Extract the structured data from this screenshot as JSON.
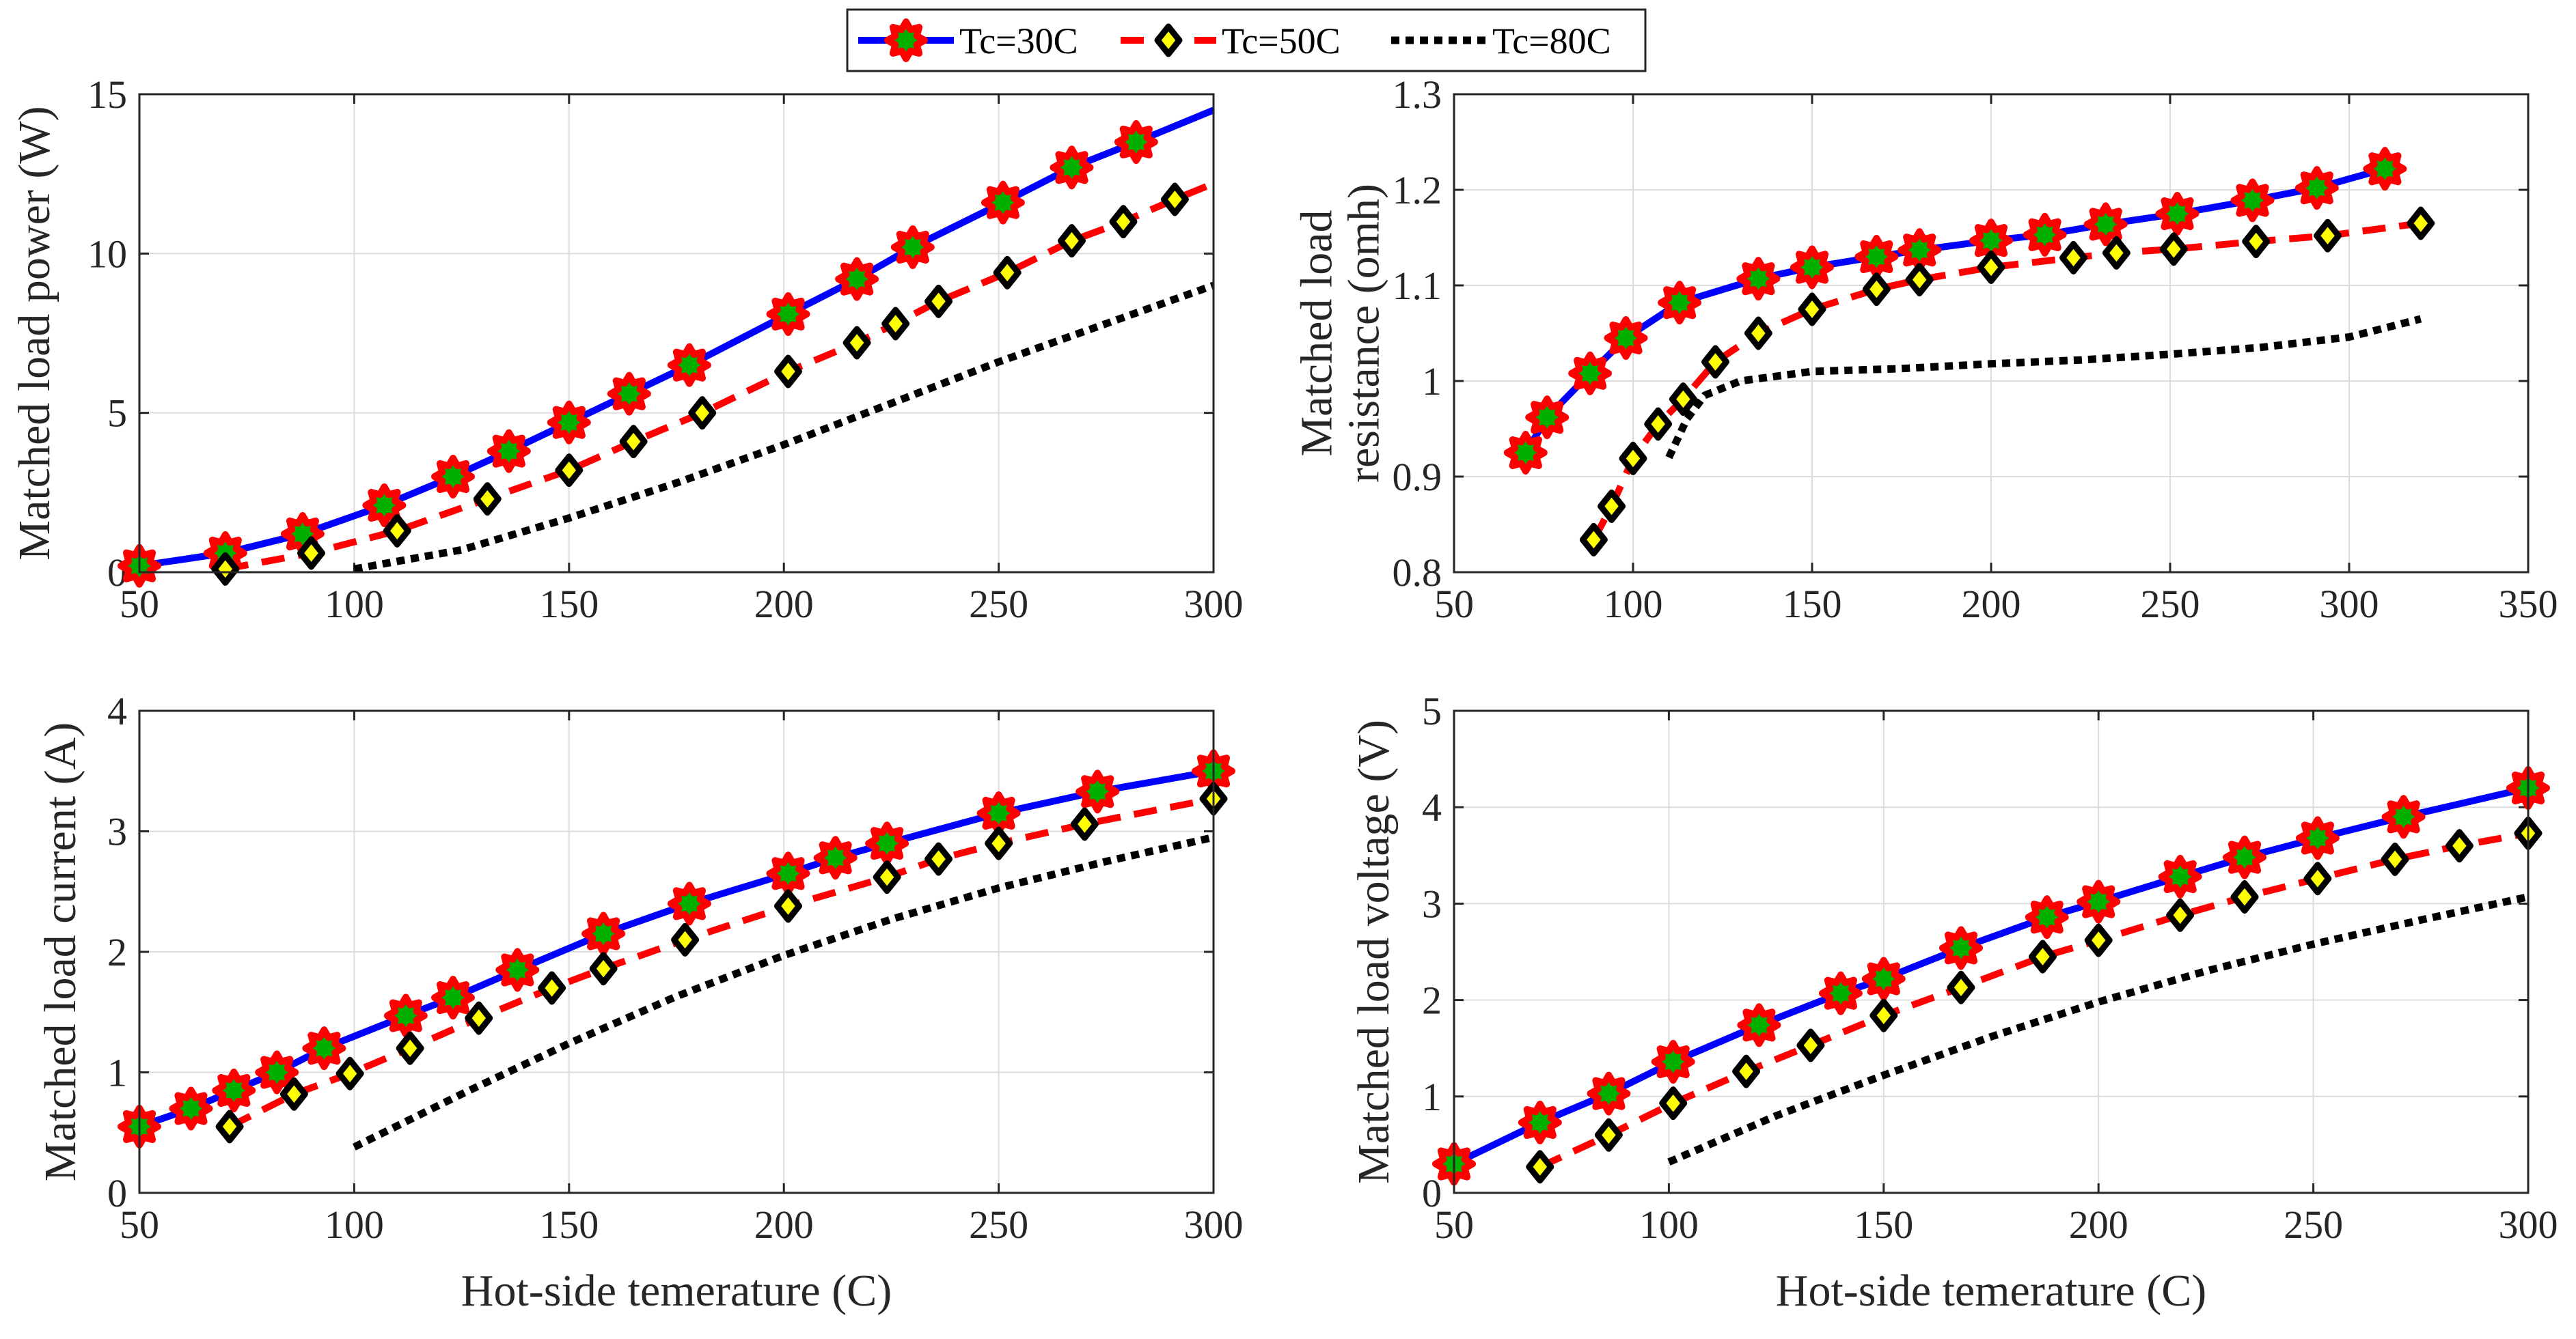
{
  "legend": {
    "entries": [
      {
        "label": "Tc=30C",
        "color": "#0000ff",
        "dash": "solid",
        "marker": "star",
        "marker_edge": "#ff0000",
        "marker_face": "#00b000"
      },
      {
        "label": "Tc=50C",
        "color": "#ff0000",
        "dash": "dashed",
        "marker": "diamond",
        "marker_edge": "#000000",
        "marker_face": "#ffff00"
      },
      {
        "label": "Tc=80C",
        "color": "#000000",
        "dash": "dotted",
        "marker": "none"
      }
    ]
  },
  "chart_data": [
    {
      "type": "line",
      "position": "top-left",
      "xlabel": "",
      "ylabel": "Matched load power (W)",
      "xlim": [
        50,
        300
      ],
      "ylim": [
        0,
        15
      ],
      "xticks": [
        50,
        100,
        150,
        200,
        250,
        300
      ],
      "yticks": [
        0,
        5,
        10,
        15
      ],
      "series": [
        {
          "name": "Tc=30C",
          "x": [
            50,
            70,
            88,
            107,
            123,
            136,
            150,
            164,
            178,
            201,
            217,
            230,
            251,
            267,
            282,
            300
          ],
          "y": [
            0.2,
            0.6,
            1.2,
            2.1,
            3.0,
            3.8,
            4.7,
            5.6,
            6.5,
            8.1,
            9.2,
            10.2,
            11.6,
            12.7,
            13.5,
            14.5
          ],
          "markers": [
            true,
            true,
            true,
            true,
            true,
            true,
            true,
            true,
            true,
            true,
            true,
            true,
            true,
            true,
            true,
            false
          ]
        },
        {
          "name": "Tc=50C",
          "x": [
            70,
            90,
            110,
            131,
            150,
            165,
            181,
            201,
            217,
            226,
            236,
            252,
            267,
            279,
            291,
            300
          ],
          "y": [
            0.1,
            0.6,
            1.3,
            2.3,
            3.2,
            4.1,
            5.0,
            6.3,
            7.2,
            7.8,
            8.5,
            9.4,
            10.4,
            11.0,
            11.7,
            12.2
          ],
          "markers": [
            true,
            true,
            true,
            true,
            true,
            true,
            true,
            true,
            true,
            true,
            true,
            true,
            true,
            true,
            true,
            false
          ]
        },
        {
          "name": "Tc=80C",
          "x": [
            100,
            125,
            150,
            175,
            200,
            225,
            250,
            275,
            300
          ],
          "y": [
            0.1,
            0.7,
            1.7,
            2.8,
            4.0,
            5.3,
            6.6,
            7.8,
            9.0
          ],
          "markers": []
        }
      ]
    },
    {
      "type": "line",
      "position": "top-right",
      "xlabel": "",
      "ylabel": "Matched load resistance (omh)",
      "ylabel_lines": [
        "Matched load",
        "resistance (omh)"
      ],
      "xlim": [
        50,
        350
      ],
      "ylim": [
        0.8,
        1.3
      ],
      "xticks": [
        50,
        100,
        150,
        200,
        250,
        300,
        350
      ],
      "yticks": [
        0.8,
        0.9,
        1,
        1.1,
        1.2,
        1.3
      ],
      "series": [
        {
          "name": "Tc=30C",
          "x": [
            70,
            76,
            88,
            98,
            113,
            135,
            150,
            168,
            180,
            200,
            215,
            232,
            252,
            273,
            291,
            310
          ],
          "y": [
            0.925,
            0.962,
            1.008,
            1.045,
            1.082,
            1.107,
            1.119,
            1.13,
            1.137,
            1.147,
            1.153,
            1.164,
            1.175,
            1.189,
            1.202,
            1.222
          ],
          "markers": [
            true,
            true,
            true,
            true,
            true,
            true,
            true,
            true,
            true,
            true,
            true,
            true,
            true,
            true,
            true,
            true
          ]
        },
        {
          "name": "Tc=50C",
          "x": [
            89,
            94,
            100,
            107,
            114,
            123,
            135,
            150,
            168,
            180,
            200,
            223,
            235,
            251,
            274,
            294,
            320
          ],
          "y": [
            0.834,
            0.869,
            0.919,
            0.955,
            0.981,
            1.02,
            1.05,
            1.075,
            1.096,
            1.106,
            1.119,
            1.129,
            1.134,
            1.138,
            1.146,
            1.152,
            1.165
          ],
          "markers": [
            true,
            true,
            true,
            true,
            true,
            true,
            true,
            true,
            true,
            true,
            true,
            true,
            true,
            true,
            true,
            true,
            true
          ]
        },
        {
          "name": "Tc=80C",
          "x": [
            110,
            115,
            120,
            130,
            150,
            175,
            200,
            225,
            250,
            275,
            300,
            320
          ],
          "y": [
            0.92,
            0.96,
            0.985,
            1.0,
            1.01,
            1.013,
            1.018,
            1.022,
            1.028,
            1.035,
            1.046,
            1.065
          ],
          "markers": []
        }
      ]
    },
    {
      "type": "line",
      "position": "bottom-left",
      "xlabel": "Hot-side temerature (C)",
      "ylabel": "Matched load current  (A)",
      "xlim": [
        50,
        300
      ],
      "ylim": [
        0,
        4
      ],
      "xticks": [
        50,
        100,
        150,
        200,
        250,
        300
      ],
      "yticks": [
        0,
        1,
        2,
        3,
        4
      ],
      "series": [
        {
          "name": "Tc=30C",
          "x": [
            50,
            62,
            72,
            82,
            93,
            112,
            123,
            138,
            158,
            178,
            201,
            212,
            224,
            250,
            273,
            300
          ],
          "y": [
            0.55,
            0.7,
            0.85,
            1.0,
            1.2,
            1.47,
            1.62,
            1.85,
            2.15,
            2.4,
            2.65,
            2.78,
            2.9,
            3.15,
            3.33,
            3.5
          ],
          "markers": [
            true,
            true,
            true,
            true,
            true,
            true,
            true,
            true,
            true,
            true,
            true,
            true,
            true,
            true,
            true,
            true
          ]
        },
        {
          "name": "Tc=50C",
          "x": [
            71,
            86,
            99,
            113,
            129,
            146,
            158,
            177,
            201,
            224,
            236,
            250,
            270,
            300
          ],
          "y": [
            0.55,
            0.82,
            0.99,
            1.2,
            1.45,
            1.7,
            1.86,
            2.1,
            2.38,
            2.62,
            2.77,
            2.9,
            3.06,
            3.27
          ],
          "markers": [
            true,
            true,
            true,
            true,
            true,
            true,
            true,
            true,
            true,
            true,
            true,
            true,
            true,
            true
          ]
        },
        {
          "name": "Tc=80C",
          "x": [
            100,
            125,
            150,
            175,
            200,
            225,
            250,
            275,
            300
          ],
          "y": [
            0.38,
            0.82,
            1.24,
            1.63,
            1.97,
            2.27,
            2.53,
            2.75,
            2.95
          ],
          "markers": []
        }
      ]
    },
    {
      "type": "line",
      "position": "bottom-right",
      "xlabel": "Hot-side temerature (C)",
      "ylabel": "Matched load voltage (V)",
      "xlim": [
        50,
        300
      ],
      "ylim": [
        0,
        5
      ],
      "xticks": [
        50,
        100,
        150,
        200,
        250,
        300
      ],
      "yticks": [
        0,
        1,
        2,
        3,
        4,
        5
      ],
      "series": [
        {
          "name": "Tc=30C",
          "x": [
            50,
            70,
            86,
            101,
            121,
            140,
            150,
            168,
            188,
            200,
            219,
            234,
            251,
            271,
            300
          ],
          "y": [
            0.3,
            0.73,
            1.03,
            1.36,
            1.74,
            2.07,
            2.22,
            2.54,
            2.86,
            3.02,
            3.28,
            3.48,
            3.68,
            3.9,
            4.2
          ],
          "markers": [
            true,
            true,
            true,
            true,
            true,
            true,
            true,
            true,
            true,
            true,
            true,
            true,
            true,
            true,
            true
          ]
        },
        {
          "name": "Tc=50C",
          "x": [
            70,
            86,
            101,
            118,
            133,
            150,
            168,
            187,
            200,
            219,
            234,
            251,
            269,
            284,
            300
          ],
          "y": [
            0.27,
            0.6,
            0.93,
            1.26,
            1.53,
            1.84,
            2.13,
            2.45,
            2.62,
            2.88,
            3.07,
            3.26,
            3.46,
            3.6,
            3.73
          ],
          "markers": [
            true,
            true,
            true,
            true,
            true,
            true,
            true,
            true,
            true,
            true,
            true,
            true,
            true,
            true,
            true
          ]
        },
        {
          "name": "Tc=80C",
          "x": [
            100,
            125,
            150,
            175,
            200,
            225,
            250,
            275,
            300
          ],
          "y": [
            0.32,
            0.8,
            1.22,
            1.62,
            1.98,
            2.3,
            2.58,
            2.83,
            3.07
          ],
          "markers": []
        }
      ]
    }
  ]
}
